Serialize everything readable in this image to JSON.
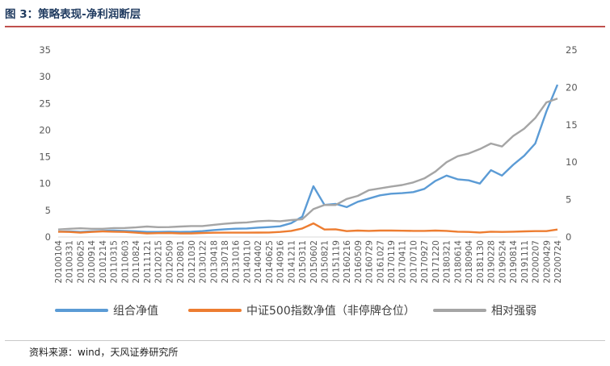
{
  "figure": {
    "title": "图 3：策略表现-净利润断层",
    "source": "资料来源：wind，天风证券研究所"
  },
  "chart_data": {
    "type": "line",
    "x_dates": [
      "20100104",
      "20100331",
      "20100625",
      "20100914",
      "20101214",
      "20110315",
      "20110603",
      "20110824",
      "20111121",
      "20120215",
      "20120509",
      "20120801",
      "20121030",
      "20130122",
      "20130418",
      "20130718",
      "20131016",
      "20140110",
      "20140402",
      "20140625",
      "20140916",
      "20141211",
      "20150311",
      "20150602",
      "20150821",
      "20151119",
      "20160216",
      "20160509",
      "20160729",
      "20161027",
      "20170119",
      "20170411",
      "20170710",
      "20170927",
      "20171220",
      "20180321",
      "20180614",
      "20180904",
      "20181130",
      "20190228",
      "20190524",
      "20190814",
      "20191111",
      "20200207",
      "20200429",
      "20200724"
    ],
    "x_tick_labels": [
      "20100104",
      "20100331",
      "20100625",
      "20100914",
      "20101214",
      "20110315",
      "20110603",
      "20110824",
      "20111121",
      "20120215",
      "20120509",
      "20120801",
      "20121030",
      "20130122",
      "20130418",
      "20130718",
      "20131016",
      "20140110",
      "20140402",
      "20140625",
      "20140916",
      "20141211",
      "20150311",
      "20150602",
      "20150821",
      "20151119",
      "20160216",
      "20160509",
      "20160729",
      "20161027",
      "20170119",
      "20170411",
      "20170710",
      "20170927",
      "20171220",
      "20180321",
      "20180614",
      "20180904",
      "20181130",
      "20190228",
      "20190524",
      "20190814",
      "20191111",
      "20200207",
      "20200429",
      "20200724"
    ],
    "y_left": {
      "min": 0,
      "max": 35,
      "ticks": [
        "0",
        "5",
        "10",
        "15",
        "20",
        "25",
        "30",
        "35"
      ]
    },
    "y_right": {
      "min": 0,
      "max": 25,
      "ticks": [
        "0",
        "5",
        "10",
        "15",
        "20",
        "25"
      ]
    },
    "grid": false,
    "legend_position": "bottom",
    "series": [
      {
        "name": "组合净值",
        "axis": "left",
        "color": "#5b9bd5",
        "values": [
          1.0,
          1.05,
          0.95,
          1.05,
          1.15,
          1.2,
          1.15,
          1.05,
          0.95,
          0.95,
          1.0,
          0.95,
          1.0,
          1.1,
          1.3,
          1.45,
          1.55,
          1.6,
          1.75,
          1.85,
          2.0,
          2.6,
          3.8,
          9.5,
          6.0,
          6.2,
          5.6,
          6.6,
          7.2,
          7.8,
          8.1,
          8.2,
          8.4,
          9.0,
          10.5,
          11.5,
          10.8,
          10.6,
          10.0,
          12.5,
          11.5,
          13.5,
          15.2,
          17.5,
          23.5,
          28.5
        ]
      },
      {
        "name": "中证500指数净值（非停牌仓位）",
        "axis": "left",
        "color": "#ed7d31",
        "values": [
          1.0,
          0.95,
          0.82,
          0.95,
          1.05,
          1.0,
          0.95,
          0.82,
          0.68,
          0.72,
          0.75,
          0.68,
          0.68,
          0.75,
          0.8,
          0.82,
          0.82,
          0.82,
          0.83,
          0.85,
          0.95,
          1.15,
          1.6,
          2.55,
          1.4,
          1.45,
          1.1,
          1.2,
          1.15,
          1.2,
          1.2,
          1.18,
          1.15,
          1.15,
          1.2,
          1.15,
          1.0,
          0.95,
          0.85,
          1.0,
          0.95,
          1.0,
          1.05,
          1.1,
          1.1,
          1.4
        ]
      },
      {
        "name": "相对强弱",
        "axis": "right",
        "color": "#a5a5a5",
        "values": [
          1.0,
          1.1,
          1.16,
          1.1,
          1.1,
          1.2,
          1.21,
          1.28,
          1.4,
          1.32,
          1.33,
          1.4,
          1.47,
          1.47,
          1.63,
          1.77,
          1.89,
          1.95,
          2.11,
          2.18,
          2.11,
          2.26,
          2.38,
          3.73,
          4.29,
          4.28,
          5.09,
          5.5,
          6.26,
          6.5,
          6.75,
          6.95,
          7.3,
          7.83,
          8.75,
          10.0,
          10.8,
          11.16,
          11.76,
          12.5,
          12.1,
          13.5,
          14.48,
          15.9,
          18.0,
          18.5
        ]
      }
    ]
  }
}
